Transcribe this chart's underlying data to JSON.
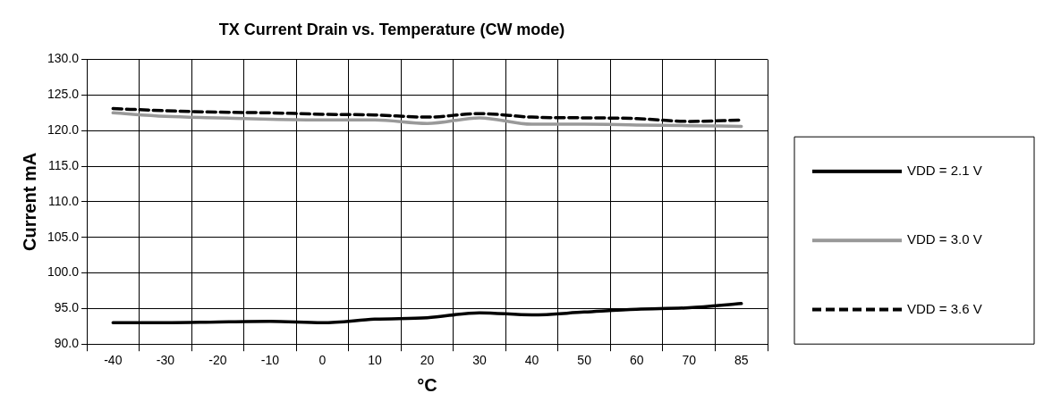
{
  "chart_data": {
    "type": "line",
    "title": "TX Current Drain vs. Temperature (CW mode)",
    "xlabel": "°C",
    "ylabel": "Current mA",
    "categories": [
      "-40",
      "-30",
      "-20",
      "-10",
      "0",
      "10",
      "20",
      "30",
      "40",
      "50",
      "60",
      "70",
      "85"
    ],
    "series": [
      {
        "name": "VDD = 2.1 V",
        "color": "#000000",
        "line_style": "solid",
        "values": [
          93.0,
          93.0,
          93.1,
          93.2,
          93.0,
          93.5,
          93.7,
          94.4,
          94.1,
          94.5,
          94.9,
          95.1,
          95.7
        ]
      },
      {
        "name": "VDD = 3.0 V",
        "color": "#999999",
        "line_style": "solid",
        "values": [
          122.5,
          122.0,
          121.8,
          121.6,
          121.5,
          121.5,
          121.0,
          121.8,
          120.9,
          120.9,
          120.8,
          120.7,
          120.6
        ]
      },
      {
        "name": "VDD = 3.6 V",
        "color": "#000000",
        "line_style": "dashed",
        "values": [
          123.1,
          122.8,
          122.6,
          122.5,
          122.3,
          122.2,
          121.9,
          122.4,
          121.9,
          121.8,
          121.7,
          121.3,
          121.5
        ]
      }
    ],
    "ylim": [
      90,
      130
    ],
    "yticks": [
      {
        "value": 90,
        "label": "90.0"
      },
      {
        "value": 95,
        "label": "95.0"
      },
      {
        "value": 100,
        "label": "100.0"
      },
      {
        "value": 105,
        "label": "105.0"
      },
      {
        "value": 110,
        "label": "110.0"
      },
      {
        "value": 115,
        "label": "115.0"
      },
      {
        "value": 120,
        "label": "120.0"
      },
      {
        "value": 125,
        "label": "125.0"
      },
      {
        "value": 130,
        "label": "130.0"
      }
    ],
    "grid": true,
    "legend": "right",
    "marker": "none"
  }
}
